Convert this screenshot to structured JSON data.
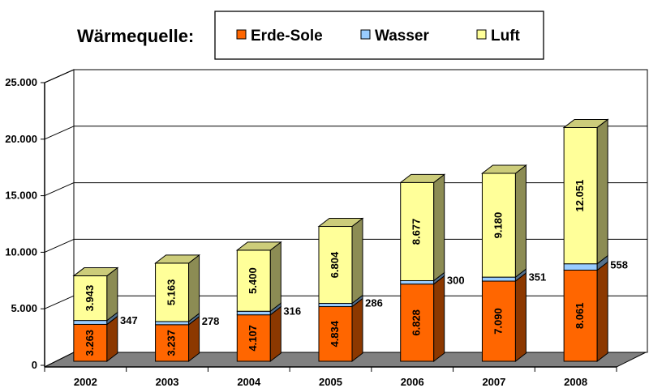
{
  "chart_data": {
    "type": "bar",
    "stacked": true,
    "three_d": true,
    "categories": [
      "2002",
      "2003",
      "2004",
      "2005",
      "2006",
      "2007",
      "2008"
    ],
    "series": [
      {
        "name": "Erde-Sole",
        "values": [
          3263,
          3237,
          4107,
          4834,
          6828,
          7090,
          8061
        ],
        "value_labels": [
          "3.263",
          "3.237",
          "4.107",
          "4.834",
          "6.828",
          "7.090",
          "8.061"
        ],
        "color": "#FF6600"
      },
      {
        "name": "Wasser",
        "values": [
          347,
          278,
          316,
          286,
          300,
          351,
          558
        ],
        "value_labels": [
          "347",
          "278",
          "316",
          "286",
          "300",
          "351",
          "558"
        ],
        "color": "#99CCFF"
      },
      {
        "name": "Luft",
        "values": [
          3943,
          5163,
          5400,
          6804,
          8677,
          9180,
          12051
        ],
        "value_labels": [
          "3.943",
          "5.163",
          "5.400",
          "6.804",
          "8.677",
          "9.180",
          "12.051"
        ],
        "color": "#FFFF99"
      }
    ],
    "yticks": [
      0,
      5000,
      10000,
      15000,
      20000,
      25000
    ],
    "ytick_labels": [
      "0",
      "5.000",
      "10.000",
      "15.000",
      "20.000",
      "25.000"
    ],
    "ylim": [
      0,
      25000
    ],
    "grid": true,
    "legend": {
      "title": "Wärmequelle:",
      "placement": "top"
    }
  }
}
